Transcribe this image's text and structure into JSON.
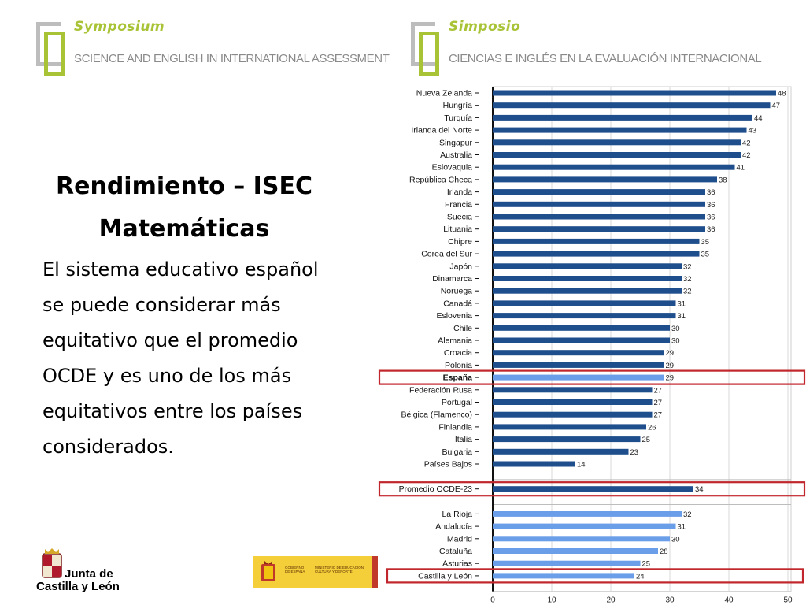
{
  "header_left": {
    "title": "Symposium",
    "subtitle": "SCIENCE AND ENGLISH IN INTERNATIONAL ASSESSMENT"
  },
  "header_right": {
    "title": "Simposio",
    "subtitle": "CIENCIAS E INGLÉS EN LA  EVALUACIÓN INTERNACIONAL"
  },
  "main": {
    "heading_line1": "Rendimiento – ISEC",
    "heading_line2": "Matemáticas",
    "body_lines": [
      "El sistema educativo español",
      "se puede considerar más",
      "equitativo que el promedio",
      "OCDE y es uno de los más",
      "equitativos entre los países",
      "considerados."
    ]
  },
  "footer": {
    "jcyl_line1": "Junta de",
    "jcyl_line2": "Castilla y León",
    "gov_label": "GOBIERNO DE ESPAÑA",
    "ministry_label": "MINISTERIO DE EDUCACIÓN, CULTURA Y DEPORTE"
  },
  "colors": {
    "dark_bar": "#1f4e8c",
    "light_bar": "#6b9ee8",
    "highlight": "#c0262b",
    "accent": "#a8c436"
  },
  "chart_data": {
    "type": "bar",
    "orientation": "horizontal",
    "xlim": [
      0,
      50
    ],
    "xticks": [
      0,
      10,
      20,
      30,
      40,
      50
    ],
    "grid": true,
    "groups": [
      {
        "items": [
          {
            "label": "Nueva Zelanda",
            "value": 48
          },
          {
            "label": "Hungría",
            "value": 47
          },
          {
            "label": "Turquía",
            "value": 44
          },
          {
            "label": "Irlanda del Norte",
            "value": 43
          },
          {
            "label": "Singapur",
            "value": 42
          },
          {
            "label": "Australia",
            "value": 42
          },
          {
            "label": "Eslovaquia",
            "value": 41
          },
          {
            "label": "República Checa",
            "value": 38
          },
          {
            "label": "Irlanda",
            "value": 36
          },
          {
            "label": "Francia",
            "value": 36
          },
          {
            "label": "Suecia",
            "value": 36
          },
          {
            "label": "Lituania",
            "value": 36
          },
          {
            "label": "Chipre",
            "value": 35
          },
          {
            "label": "Corea del Sur",
            "value": 35
          },
          {
            "label": "Japón",
            "value": 32
          },
          {
            "label": "Dinamarca",
            "value": 32
          },
          {
            "label": "Noruega",
            "value": 32
          },
          {
            "label": "Canadá",
            "value": 31
          },
          {
            "label": "Eslovenia",
            "value": 31
          },
          {
            "label": "Chile",
            "value": 30
          },
          {
            "label": "Alemania",
            "value": 30
          },
          {
            "label": "Croacia",
            "value": 29
          },
          {
            "label": "Polonia",
            "value": 29
          },
          {
            "label": "España",
            "value": 29,
            "highlight": true,
            "bold": true,
            "light": true
          },
          {
            "label": "Federación Rusa",
            "value": 27
          },
          {
            "label": "Portugal",
            "value": 27
          },
          {
            "label": "Bélgica (Flamenco)",
            "value": 27
          },
          {
            "label": "Finlandia",
            "value": 26
          },
          {
            "label": "Italia",
            "value": 25
          },
          {
            "label": "Bulgaria",
            "value": 23
          },
          {
            "label": "Países Bajos",
            "value": 14
          }
        ]
      },
      {
        "items": [
          {
            "label": "Promedio OCDE-23",
            "value": 34,
            "highlight": true
          }
        ]
      },
      {
        "items": [
          {
            "label": "La Rioja",
            "value": 32,
            "light": true
          },
          {
            "label": "Andalucía",
            "value": 31,
            "light": true
          },
          {
            "label": "Madrid",
            "value": 30,
            "light": true
          },
          {
            "label": "Cataluña",
            "value": 28,
            "light": true
          },
          {
            "label": "Asturias",
            "value": 25,
            "light": true
          },
          {
            "label": "Castilla y León",
            "value": 24,
            "light": true,
            "highlight": true
          }
        ]
      }
    ]
  }
}
